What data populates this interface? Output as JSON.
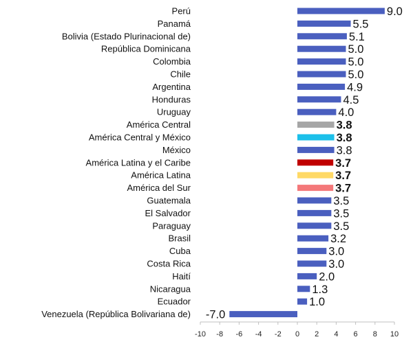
{
  "chart_data": {
    "type": "bar",
    "orientation": "horizontal",
    "title": "",
    "xlabel": "",
    "ylabel": "",
    "xlim": [
      -10,
      10
    ],
    "x_ticks": [
      "-10",
      "-8",
      "-6",
      "-4",
      "-2",
      "0",
      "2",
      "4",
      "6",
      "8",
      "10"
    ],
    "grid": false,
    "legend": "none",
    "categories": [
      "Perú",
      "Panamá",
      "Bolivia (Estado Plurinacional de)",
      "República Dominicana",
      "Colombia",
      "Chile",
      "Argentina",
      "Honduras",
      "Uruguay",
      "América Central",
      "América Central y México",
      "México",
      "América Latina y el Caribe",
      "América Latina",
      "América del Sur",
      "Guatemala",
      "El Salvador",
      "Paraguay",
      "Brasil",
      "Cuba",
      "Costa Rica",
      "Haití",
      "Nicaragua",
      "Ecuador",
      "Venezuela (República Bolivariana de)"
    ],
    "values": [
      9.0,
      5.5,
      5.1,
      5.0,
      5.0,
      5.0,
      4.9,
      4.5,
      4.0,
      3.8,
      3.8,
      3.8,
      3.7,
      3.7,
      3.7,
      3.5,
      3.5,
      3.5,
      3.2,
      3.0,
      3.0,
      2.0,
      1.3,
      1.0,
      -7.0
    ],
    "value_labels": [
      "9.0",
      "5.5",
      "5.1",
      "5.0",
      "5.0",
      "5.0",
      "4.9",
      "4.5",
      "4.0",
      "3.8",
      "3.8",
      "3.8",
      "3.7",
      "3.7",
      "3.7",
      "3.5",
      "3.5",
      "3.5",
      "3.2",
      "3.0",
      "3.0",
      "2.0",
      "1.3",
      "1.0",
      "-7.0"
    ],
    "bar_colors": [
      "#4a5fbf",
      "#4a5fbf",
      "#4a5fbf",
      "#4a5fbf",
      "#4a5fbf",
      "#4a5fbf",
      "#4a5fbf",
      "#4a5fbf",
      "#4a5fbf",
      "#a6a6a6",
      "#1cc0ea",
      "#4a5fbf",
      "#c00000",
      "#ffd966",
      "#f4787a",
      "#4a5fbf",
      "#4a5fbf",
      "#4a5fbf",
      "#4a5fbf",
      "#4a5fbf",
      "#4a5fbf",
      "#4a5fbf",
      "#4a5fbf",
      "#4a5fbf",
      "#4a5fbf"
    ],
    "label_colors": [
      "#111111",
      "#111111",
      "#111111",
      "#111111",
      "#111111",
      "#111111",
      "#111111",
      "#111111",
      "#111111",
      "#111111",
      "#111111",
      "#111111",
      "#8b1a1a",
      "#111111",
      "#111111",
      "#111111",
      "#111111",
      "#111111",
      "#111111",
      "#111111",
      "#111111",
      "#111111",
      "#111111",
      "#111111",
      "#111111"
    ],
    "label_bold": [
      false,
      false,
      false,
      false,
      false,
      false,
      false,
      false,
      false,
      true,
      true,
      false,
      true,
      true,
      true,
      false,
      false,
      false,
      false,
      false,
      false,
      false,
      false,
      false,
      false
    ]
  }
}
